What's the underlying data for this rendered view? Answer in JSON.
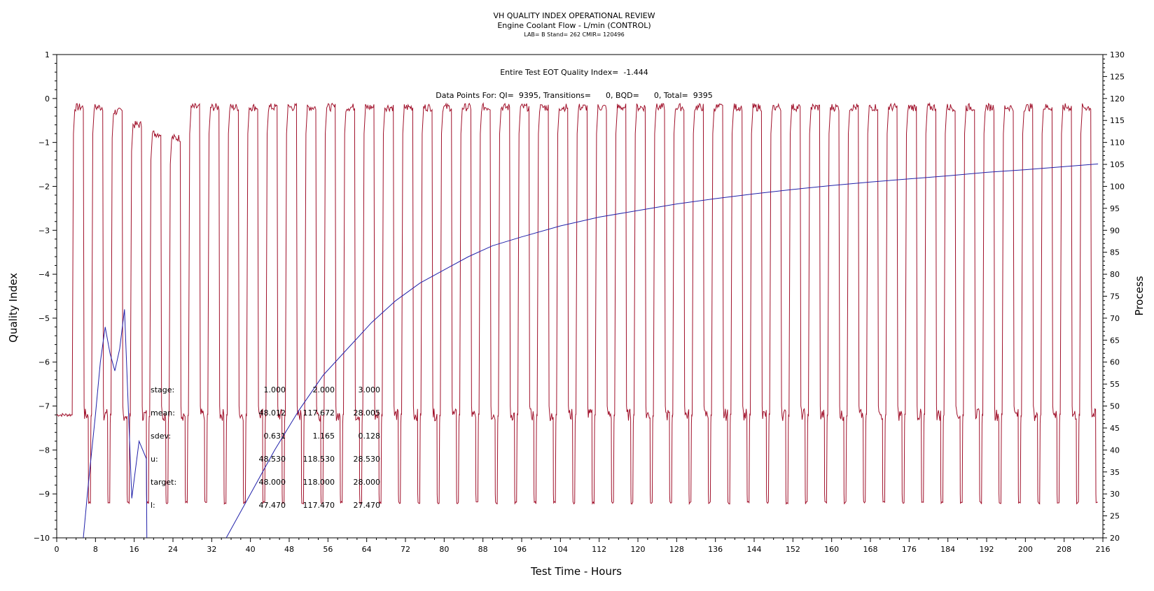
{
  "chart_data": {
    "type": "line",
    "title": "VH QUALITY INDEX OPERATIONAL REVIEW",
    "subtitle": "Engine Coolant Flow - L/min (CONTROL)",
    "subtitle2": "LAB= B Stand= 262 CMIR= 120496",
    "xlabel": "Test Time - Hours",
    "ylabel": "Quality Index",
    "y2label": "Process",
    "xlim": [
      0,
      216
    ],
    "ylim": [
      -10,
      1
    ],
    "y2lim": [
      20,
      130
    ],
    "x_ticks": [
      0,
      8,
      16,
      24,
      32,
      40,
      48,
      56,
      64,
      72,
      80,
      88,
      96,
      104,
      112,
      120,
      128,
      136,
      144,
      152,
      160,
      168,
      176,
      184,
      192,
      200,
      208,
      216
    ],
    "y_ticks": [
      1,
      0,
      -1,
      -2,
      -3,
      -4,
      -5,
      -6,
      -7,
      -8,
      -9,
      -10
    ],
    "y2_ticks": [
      130,
      125,
      120,
      115,
      110,
      105,
      100,
      95,
      90,
      85,
      80,
      75,
      70,
      65,
      60,
      55,
      50,
      45,
      40,
      35,
      30,
      25,
      20
    ],
    "grid": false,
    "annotations": {
      "eot_qi": "Entire Test EOT Quality Index=  -1.444",
      "data_points": "Data Points For: QI=  9395, Transitions=      0, BQD=      0, Total=  9395"
    },
    "stats_table": {
      "rows": [
        {
          "label": "stage:",
          "values": [
            "1.000",
            "2.000",
            "3.000"
          ]
        },
        {
          "label": "mean:",
          "values": [
            "48.012",
            "117.672",
            "28.005"
          ]
        },
        {
          "label": "sdev:",
          "values": [
            "0.631",
            "1.165",
            "0.128"
          ]
        },
        {
          "label": "u:",
          "values": [
            "48.530",
            "118.530",
            "28.530"
          ]
        },
        {
          "label": "target:",
          "values": [
            "48.000",
            "118.000",
            "28.000"
          ]
        },
        {
          "label": "l:",
          "values": [
            "47.470",
            "117.470",
            "27.470"
          ]
        }
      ]
    },
    "series": [
      {
        "color": "#a0102a",
        "axis": "right",
        "description": "process value cycling between stages 48, 118 and 28 L/min",
        "cycle": {
          "start": 3.2,
          "period": 4.0,
          "count": 53,
          "levels": [
            48,
            118,
            48,
            28
          ],
          "initial_level": 48,
          "early_peaks": [
            118,
            118,
            117,
            114,
            112,
            111
          ]
        }
      },
      {
        "color": "#2222aa",
        "axis": "left",
        "segments": [
          {
            "x": [
              5.5,
              6.5,
              8,
              9,
              10,
              11,
              12,
              13,
              14,
              15.5,
              17,
              18.5,
              18.6
            ],
            "y": [
              -10,
              -8.8,
              -7.2,
              -6.0,
              -5.2,
              -5.8,
              -6.2,
              -5.7,
              -4.8,
              -9.1,
              -7.8,
              -8.2,
              -10
            ]
          },
          {
            "x": [
              35,
              40,
              45,
              50,
              55,
              60,
              65,
              70,
              75,
              80,
              85,
              90,
              96,
              104,
              112,
              120,
              128,
              136,
              144,
              152,
              160,
              168,
              176,
              184,
              192,
              200,
              208,
              215
            ],
            "y": [
              -10,
              -9.0,
              -8.0,
              -7.1,
              -6.3,
              -5.7,
              -5.1,
              -4.6,
              -4.2,
              -3.9,
              -3.6,
              -3.35,
              -3.15,
              -2.9,
              -2.7,
              -2.55,
              -2.4,
              -2.28,
              -2.17,
              -2.07,
              -1.98,
              -1.9,
              -1.83,
              -1.76,
              -1.68,
              -1.62,
              -1.55,
              -1.49
            ]
          }
        ]
      }
    ]
  }
}
